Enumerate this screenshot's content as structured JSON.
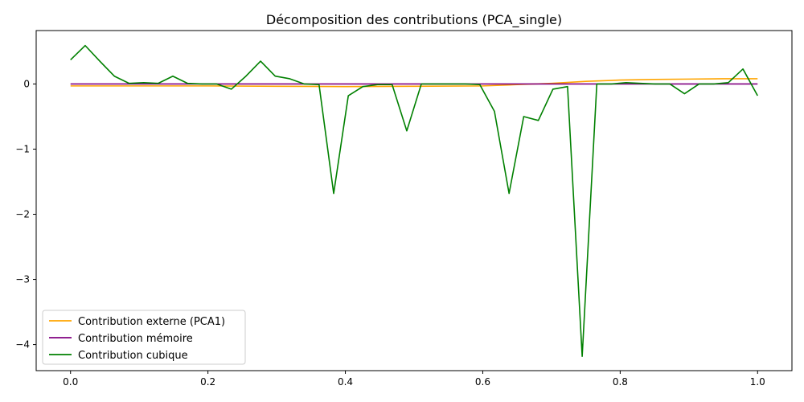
{
  "chart_data": {
    "type": "line",
    "title": "Décomposition des contributions (PCA_single)",
    "xlabel": "",
    "ylabel": "",
    "xlim": [
      -0.05,
      1.05
    ],
    "ylim": [
      -4.4,
      0.82
    ],
    "x_ticks": [
      0.0,
      0.2,
      0.4,
      0.6,
      0.8,
      1.0
    ],
    "x_tick_labels": [
      "0.0",
      "0.2",
      "0.4",
      "0.6",
      "0.8",
      "1.0"
    ],
    "y_ticks": [
      0,
      -1,
      -2,
      -3,
      -4
    ],
    "y_tick_labels": [
      "0",
      "−1",
      "−2",
      "−3",
      "−4"
    ],
    "grid": false,
    "legend_position": "lower-left",
    "series": [
      {
        "name": "Contribution externe (PCA1)",
        "color": "#ffa500",
        "x": [
          0.0,
          0.1,
          0.2,
          0.3,
          0.4,
          0.5,
          0.6,
          0.65,
          0.7,
          0.75,
          0.8,
          0.85,
          0.9,
          0.95,
          1.0
        ],
        "y": [
          -0.03,
          -0.03,
          -0.03,
          -0.035,
          -0.04,
          -0.035,
          -0.03,
          -0.01,
          0.01,
          0.04,
          0.06,
          0.07,
          0.075,
          0.08,
          0.08
        ]
      },
      {
        "name": "Contribution mémoire",
        "color": "#800080",
        "x": [
          0.0,
          1.0
        ],
        "y": [
          0.0,
          0.0
        ]
      },
      {
        "name": "Contribution cubique",
        "color": "#008000",
        "x": [
          0.0,
          0.0213,
          0.0426,
          0.0638,
          0.0851,
          0.1064,
          0.1277,
          0.1489,
          0.1702,
          0.1915,
          0.2128,
          0.234,
          0.2553,
          0.2766,
          0.2979,
          0.3191,
          0.3404,
          0.3617,
          0.383,
          0.4043,
          0.4255,
          0.4468,
          0.4681,
          0.4894,
          0.5106,
          0.5319,
          0.5532,
          0.5745,
          0.5957,
          0.617,
          0.6383,
          0.6596,
          0.6809,
          0.7021,
          0.7234,
          0.7447,
          0.766,
          0.7872,
          0.8085,
          0.8298,
          0.8511,
          0.8723,
          0.8936,
          0.9149,
          0.9362,
          0.9574,
          0.9787,
          1.0
        ],
        "y": [
          0.37,
          0.59,
          0.35,
          0.12,
          0.01,
          0.02,
          0.01,
          0.12,
          0.01,
          0.0,
          0.0,
          -0.08,
          0.12,
          0.35,
          0.12,
          0.08,
          0.0,
          -0.01,
          -1.68,
          -0.18,
          -0.04,
          -0.01,
          -0.01,
          -0.72,
          0.0,
          0.0,
          0.0,
          0.0,
          -0.01,
          -0.42,
          -1.68,
          -0.5,
          -0.56,
          -0.08,
          -0.04,
          -4.18,
          0.0,
          0.0,
          0.02,
          0.01,
          0.0,
          0.0,
          -0.15,
          0.0,
          0.0,
          0.02,
          0.23,
          -0.18
        ]
      }
    ]
  }
}
